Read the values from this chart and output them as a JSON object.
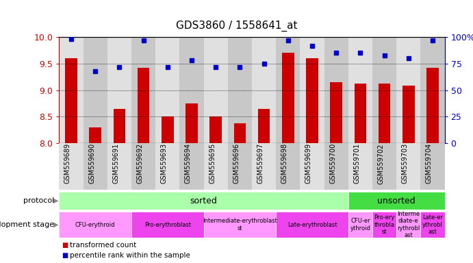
{
  "title": "GDS3860 / 1558641_at",
  "samples": [
    "GSM559689",
    "GSM559690",
    "GSM559691",
    "GSM559692",
    "GSM559693",
    "GSM559694",
    "GSM559695",
    "GSM559696",
    "GSM559697",
    "GSM559698",
    "GSM559699",
    "GSM559700",
    "GSM559701",
    "GSM559702",
    "GSM559703",
    "GSM559704"
  ],
  "bar_values": [
    9.6,
    8.3,
    8.65,
    9.42,
    8.5,
    8.75,
    8.5,
    8.38,
    8.65,
    9.7,
    9.6,
    9.15,
    9.12,
    9.12,
    9.08,
    9.42
  ],
  "dot_values": [
    98,
    68,
    72,
    97,
    72,
    78,
    72,
    72,
    75,
    97,
    92,
    85,
    85,
    83,
    80,
    97
  ],
  "ylim": [
    8,
    10
  ],
  "y2lim": [
    0,
    100
  ],
  "yticks": [
    8,
    8.5,
    9,
    9.5,
    10
  ],
  "y2ticks": [
    0,
    25,
    50,
    75,
    100
  ],
  "bar_color": "#cc0000",
  "dot_color": "#0000cc",
  "protocol_sorted_label": "sorted",
  "protocol_unsorted_label": "unsorted",
  "protocol_sorted_color": "#aaffaa",
  "protocol_unsorted_color": "#44dd44",
  "dev_stage_groups": [
    {
      "label": "CFU-erythroid",
      "start": 0,
      "end": 2,
      "color": "#ff99ff"
    },
    {
      "label": "Pro-erythroblast",
      "start": 3,
      "end": 5,
      "color": "#ee44ee"
    },
    {
      "label": "Intermediate-erythroblast\nst",
      "start": 6,
      "end": 8,
      "color": "#ff99ff"
    },
    {
      "label": "Late-erythroblast",
      "start": 9,
      "end": 11,
      "color": "#ee44ee"
    },
    {
      "label": "CFU-er\nythroid",
      "start": 12,
      "end": 12,
      "color": "#ff99ff"
    },
    {
      "label": "Pro-ery\nthrobla\nst",
      "start": 13,
      "end": 13,
      "color": "#ee44ee"
    },
    {
      "label": "Interme\ndiate-e\nrythrobl\nast",
      "start": 14,
      "end": 14,
      "color": "#ff99ff"
    },
    {
      "label": "Late-er\nythrobl\nast",
      "start": 15,
      "end": 15,
      "color": "#ee44ee"
    }
  ],
  "bar_color_red": "#cc0000",
  "dot_color_blue": "#0000cc",
  "axis_bg": "#d8d8d8",
  "col_bg_even": "#e0e0e0",
  "col_bg_odd": "#c8c8c8"
}
